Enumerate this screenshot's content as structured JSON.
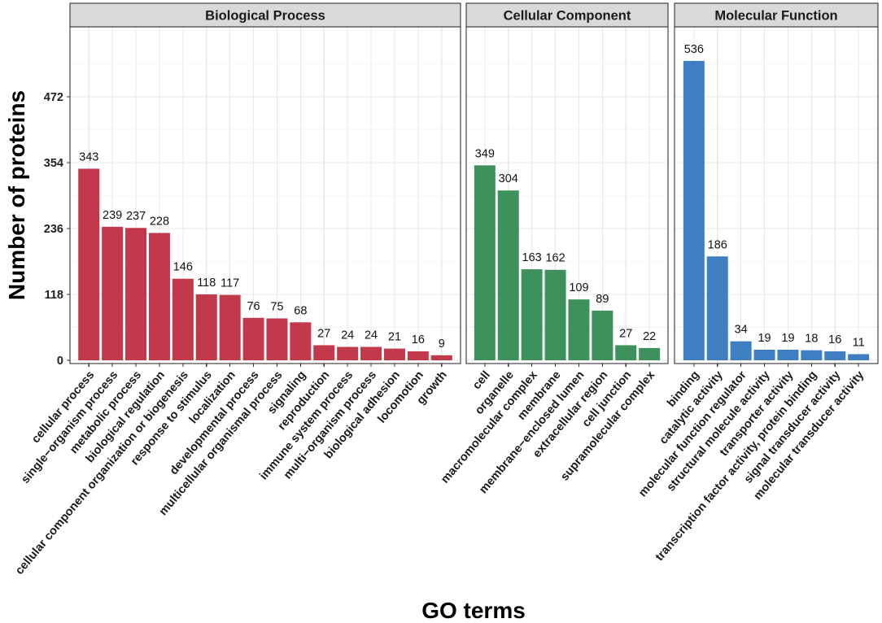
{
  "chart_data": {
    "type": "bar",
    "xlabel": "GO terms",
    "ylabel": "Number of proteins",
    "ylim": [
      0,
      597
    ],
    "yticks": [
      0,
      118,
      236,
      354,
      472
    ],
    "grid": true,
    "facets": [
      {
        "name": "Biological Process",
        "color": "#c2394b",
        "categories": [
          "cellular process",
          "single−organism process",
          "metabolic process",
          "biological regulation",
          "cellular component organization or biogenesis",
          "response to stimulus",
          "localization",
          "developmental process",
          "multicellular organismal process",
          "signaling",
          "reproduction",
          "immune system process",
          "multi−organism process",
          "biological adhesion",
          "locomotion",
          "growth"
        ],
        "values": [
          343,
          239,
          237,
          228,
          146,
          118,
          117,
          76,
          75,
          68,
          27,
          24,
          24,
          21,
          16,
          9
        ]
      },
      {
        "name": "Cellular Component",
        "color": "#3e915c",
        "categories": [
          "cell",
          "organelle",
          "macromolecular complex",
          "membrane",
          "membrane−enclosed lumen",
          "extracellular region",
          "cell junction",
          "supramolecular complex"
        ],
        "values": [
          349,
          304,
          163,
          162,
          109,
          89,
          27,
          22
        ]
      },
      {
        "name": "Molecular Function",
        "color": "#3f7fc1",
        "categories": [
          "binding",
          "catalytic activity",
          "molecular function regulator",
          "structural molecule activity",
          "transporter activity",
          "transcription factor activity, protein binding",
          "signal transducer activity",
          "molecular transducer activity"
        ],
        "values": [
          536,
          186,
          34,
          19,
          19,
          18,
          16,
          11
        ]
      }
    ]
  }
}
